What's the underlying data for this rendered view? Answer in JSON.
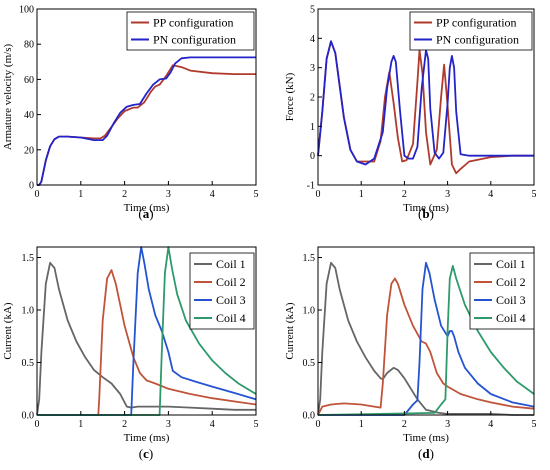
{
  "panels": [
    {
      "id": "a",
      "label": "(a)",
      "chart_data": {
        "type": "line",
        "xlabel": "Time (ms)",
        "ylabel": "Armature velocity (m/s)",
        "xlim": [
          0,
          5
        ],
        "ylim": [
          0,
          100
        ],
        "xticks": [
          0,
          1,
          2,
          3,
          4,
          5
        ],
        "yticks": [
          0,
          20,
          40,
          60,
          80,
          100
        ],
        "grid": false,
        "legend": "top-right",
        "series": [
          {
            "name": "PP configuration",
            "color": "#b03a2e",
            "x": [
              0,
              0.05,
              0.1,
              0.2,
              0.3,
              0.4,
              0.5,
              0.7,
              1.0,
              1.3,
              1.45,
              1.55,
              1.7,
              1.85,
              2.0,
              2.2,
              2.3,
              2.45,
              2.6,
              2.7,
              2.8,
              2.95,
              3.1,
              3.3,
              3.5,
              4.0,
              4.5,
              5.0
            ],
            "y": [
              0,
              0,
              2,
              14,
              22,
              26,
              27.5,
              27.5,
              27,
              26.5,
              26.5,
              28,
              33,
              38,
              42,
              44,
              44,
              47,
              53,
              56,
              57,
              62,
              68,
              67,
              65,
              63.5,
              63,
              63
            ]
          },
          {
            "name": "PN configuration",
            "color": "#2323c8",
            "x": [
              0,
              0.05,
              0.1,
              0.2,
              0.3,
              0.4,
              0.5,
              0.7,
              1.0,
              1.3,
              1.5,
              1.6,
              1.75,
              1.9,
              2.05,
              2.2,
              2.35,
              2.5,
              2.65,
              2.8,
              2.95,
              3.05,
              3.15,
              3.3,
              3.5,
              4.0,
              4.5,
              5.0
            ],
            "y": [
              0,
              0,
              2,
              14,
              22,
              26,
              27.5,
              27.5,
              27,
              25.5,
              25.5,
              28,
              35,
              41,
              44.5,
              45.5,
              46,
              52,
              57,
              60,
              60.5,
              64,
              69,
              72,
              72.5,
              72.5,
              72.5,
              72.5
            ]
          }
        ]
      }
    },
    {
      "id": "b",
      "label": "(b)",
      "chart_data": {
        "type": "line",
        "xlabel": "Time (ms)",
        "ylabel": "Force (kN)",
        "xlim": [
          0,
          5
        ],
        "ylim": [
          -1,
          5
        ],
        "xticks": [
          0,
          1,
          2,
          3,
          4,
          5
        ],
        "yticks": [
          -1,
          0,
          1,
          2,
          3,
          4,
          5
        ],
        "grid": false,
        "legend": "top-right",
        "series": [
          {
            "name": "PP configuration",
            "color": "#b03a2e",
            "x": [
              0,
              0.1,
              0.2,
              0.3,
              0.4,
              0.5,
              0.6,
              0.75,
              0.9,
              1.1,
              1.3,
              1.45,
              1.55,
              1.65,
              1.75,
              1.85,
              1.95,
              2.05,
              2.2,
              2.3,
              2.35,
              2.42,
              2.5,
              2.6,
              2.75,
              2.85,
              2.92,
              3.0,
              3.1,
              3.2,
              3.3,
              3.5,
              4.0,
              4.5,
              5.0
            ],
            "y": [
              0,
              1.5,
              3.3,
              3.9,
              3.5,
              2.4,
              1.3,
              0.2,
              -0.2,
              -0.2,
              -0.2,
              0.5,
              2.0,
              2.85,
              1.8,
              0.6,
              -0.2,
              -0.15,
              0.4,
              2.5,
              3.6,
              2.8,
              0.8,
              -0.3,
              0.2,
              2.0,
              3.1,
              1.7,
              -0.3,
              -0.6,
              -0.45,
              -0.2,
              -0.05,
              0,
              0
            ]
          },
          {
            "name": "PN configuration",
            "color": "#2323c8",
            "x": [
              0,
              0.1,
              0.2,
              0.3,
              0.4,
              0.5,
              0.6,
              0.75,
              0.9,
              1.1,
              1.3,
              1.5,
              1.6,
              1.7,
              1.75,
              1.8,
              1.9,
              2.0,
              2.1,
              2.2,
              2.3,
              2.4,
              2.5,
              2.55,
              2.6,
              2.7,
              2.8,
              2.9,
              3.0,
              3.05,
              3.1,
              3.15,
              3.2,
              3.3,
              3.5,
              4.0,
              4.5,
              5.0
            ],
            "y": [
              0,
              1.5,
              3.3,
              3.9,
              3.5,
              2.4,
              1.3,
              0.2,
              -0.2,
              -0.3,
              -0.1,
              0.8,
              2.3,
              3.2,
              3.4,
              3.2,
              1.5,
              0,
              -0.1,
              -0.1,
              0.3,
              2.3,
              3.6,
              3.3,
              1.6,
              0.1,
              -0.1,
              0.1,
              1.8,
              3.0,
              3.4,
              3.0,
              1.5,
              0.05,
              0,
              0,
              0,
              0
            ]
          }
        ]
      }
    },
    {
      "id": "c",
      "label": "(c)",
      "chart_data": {
        "type": "line",
        "xlabel": "Time (ms)",
        "ylabel": "Current (kA)",
        "xlim": [
          0,
          5
        ],
        "ylim": [
          0,
          1.6
        ],
        "xticks": [
          0,
          1,
          2,
          3,
          4,
          5
        ],
        "yticks": [
          0,
          0.5,
          1.0,
          1.5
        ],
        "ytick_labels": [
          "0.0",
          "0.5",
          "1.0",
          "1.5"
        ],
        "grid": false,
        "legend": "top-right",
        "series": [
          {
            "name": "Coil 1",
            "color": "#666666",
            "x": [
              0,
              0.05,
              0.1,
              0.2,
              0.3,
              0.4,
              0.5,
              0.7,
              0.9,
              1.1,
              1.3,
              1.5,
              1.7,
              1.9,
              2.05,
              2.15,
              2.3,
              2.6,
              3.0,
              3.5,
              4.0,
              4.5,
              5.0
            ],
            "y": [
              0,
              0.15,
              0.6,
              1.25,
              1.45,
              1.4,
              1.2,
              0.9,
              0.7,
              0.55,
              0.43,
              0.36,
              0.3,
              0.2,
              0.08,
              0.07,
              0.08,
              0.08,
              0.08,
              0.07,
              0.06,
              0.05,
              0.05
            ]
          },
          {
            "name": "Coil 2",
            "color": "#c0543a",
            "x": [
              0,
              1.4,
              1.42,
              1.5,
              1.6,
              1.7,
              1.8,
              1.9,
              2.0,
              2.1,
              2.2,
              2.35,
              2.5,
              2.7,
              3.0,
              3.5,
              4.0,
              4.5,
              5.0
            ],
            "y": [
              0,
              0,
              0.15,
              0.9,
              1.3,
              1.38,
              1.25,
              1.05,
              0.85,
              0.7,
              0.55,
              0.4,
              0.33,
              0.3,
              0.25,
              0.2,
              0.16,
              0.13,
              0.1
            ]
          },
          {
            "name": "Coil 3",
            "color": "#2554d0",
            "x": [
              0,
              2.15,
              2.2,
              2.3,
              2.38,
              2.45,
              2.55,
              2.7,
              2.85,
              3.0,
              3.1,
              3.3,
              3.6,
              4.0,
              4.5,
              5.0
            ],
            "y": [
              0,
              0,
              0.5,
              1.35,
              1.6,
              1.45,
              1.2,
              0.95,
              0.8,
              0.6,
              0.42,
              0.36,
              0.32,
              0.27,
              0.21,
              0.15
            ]
          },
          {
            "name": "Coil 4",
            "color": "#2e9a6c",
            "x": [
              0,
              2.8,
              2.85,
              2.92,
              3.0,
              3.08,
              3.2,
              3.4,
              3.7,
              4.0,
              4.3,
              4.6,
              5.0
            ],
            "y": [
              0,
              0,
              0.6,
              1.35,
              1.6,
              1.4,
              1.15,
              0.9,
              0.68,
              0.52,
              0.4,
              0.3,
              0.2
            ]
          }
        ]
      }
    },
    {
      "id": "d",
      "label": "(d)",
      "chart_data": {
        "type": "line",
        "xlabel": "Time (ms)",
        "ylabel": "Current (kA)",
        "xlim": [
          0,
          5
        ],
        "ylim": [
          0,
          1.6
        ],
        "xticks": [
          0,
          1,
          2,
          3,
          4,
          5
        ],
        "yticks": [
          0,
          0.5,
          1.0,
          1.5
        ],
        "ytick_labels": [
          "0.0",
          "0.5",
          "1.0",
          "1.5"
        ],
        "grid": false,
        "legend": "top-right",
        "series": [
          {
            "name": "Coil 1",
            "color": "#666666",
            "x": [
              0,
              0.05,
              0.1,
              0.2,
              0.3,
              0.4,
              0.5,
              0.7,
              0.9,
              1.1,
              1.3,
              1.45,
              1.5,
              1.6,
              1.75,
              1.85,
              2.0,
              2.15,
              2.3,
              2.5,
              2.8,
              3.0,
              3.5,
              4.0,
              4.5,
              5.0
            ],
            "y": [
              0,
              0.15,
              0.6,
              1.25,
              1.45,
              1.4,
              1.2,
              0.9,
              0.7,
              0.55,
              0.42,
              0.35,
              0.34,
              0.4,
              0.45,
              0.43,
              0.35,
              0.25,
              0.15,
              0.05,
              0.02,
              0.01,
              0.01,
              0.01,
              0.0,
              0.0
            ]
          },
          {
            "name": "Coil 2",
            "color": "#c0543a",
            "x": [
              0,
              0.1,
              0.3,
              0.6,
              1.0,
              1.3,
              1.45,
              1.5,
              1.6,
              1.7,
              1.78,
              1.85,
              2.0,
              2.2,
              2.4,
              2.5,
              2.6,
              2.75,
              2.9,
              3.0,
              3.3,
              3.7,
              4.0,
              4.5,
              5.0
            ],
            "y": [
              0,
              0.08,
              0.1,
              0.11,
              0.1,
              0.08,
              0.07,
              0.3,
              0.95,
              1.25,
              1.3,
              1.25,
              1.05,
              0.85,
              0.7,
              0.68,
              0.6,
              0.4,
              0.3,
              0.27,
              0.2,
              0.15,
              0.12,
              0.08,
              0.06
            ]
          },
          {
            "name": "Coil 3",
            "color": "#2554d0",
            "x": [
              0,
              2.0,
              2.2,
              2.3,
              2.35,
              2.42,
              2.5,
              2.58,
              2.7,
              2.85,
              3.0,
              3.05,
              3.1,
              3.15,
              3.25,
              3.4,
              3.7,
              4.0,
              4.5,
              5.0
            ],
            "y": [
              0,
              0,
              0.1,
              0.14,
              0.5,
              1.2,
              1.45,
              1.35,
              1.1,
              0.85,
              0.75,
              0.8,
              0.8,
              0.75,
              0.6,
              0.45,
              0.3,
              0.2,
              0.12,
              0.08
            ]
          },
          {
            "name": "Coil 4",
            "color": "#2e9a6c",
            "x": [
              0,
              2.7,
              2.85,
              2.95,
              3.0,
              3.05,
              3.12,
              3.2,
              3.4,
              3.7,
              4.0,
              4.3,
              4.6,
              5.0
            ],
            "y": [
              0,
              0.02,
              0.1,
              0.15,
              0.8,
              1.3,
              1.42,
              1.3,
              1.05,
              0.8,
              0.6,
              0.45,
              0.32,
              0.2
            ]
          }
        ]
      }
    }
  ]
}
